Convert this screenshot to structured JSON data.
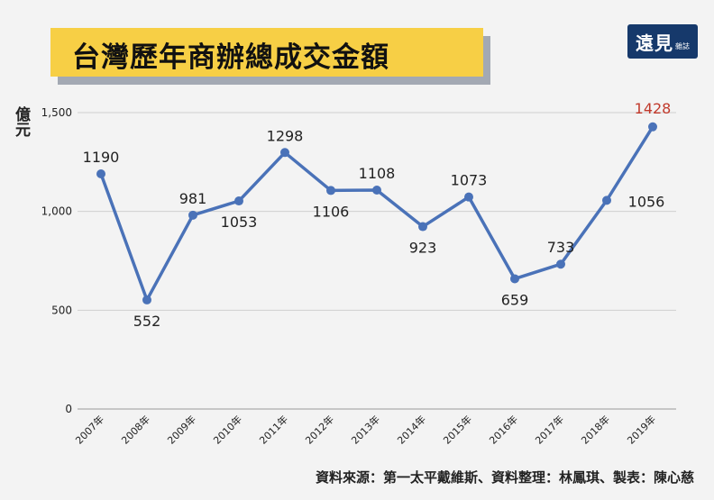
{
  "title": "台灣歷年商辦總成交金額",
  "logo": {
    "main": "遠見",
    "sub": "雜誌"
  },
  "source": "資料來源：第一太平戴維斯、資料整理：林鳳琪、製表：陳心慈",
  "colors": {
    "line": "#4a72b8",
    "highlight": "#c0392b",
    "title_bg": "#f7cf45",
    "title_shadow": "#a3a9b3",
    "logo_bg": "#16396b"
  },
  "chart_data": {
    "type": "line",
    "title": "台灣歷年商辦總成交金額",
    "ylabel": "億元",
    "xlabel": "",
    "categories": [
      "2007年",
      "2008年",
      "2009年",
      "2010年",
      "2011年",
      "2012年",
      "2013年",
      "2014年",
      "2015年",
      "2016年",
      "2017年",
      "2018年",
      "2019年"
    ],
    "values": [
      1190,
      552,
      981,
      1053,
      1298,
      1106,
      1108,
      923,
      1073,
      659,
      733,
      1056,
      1428
    ],
    "data_labels": [
      "1190",
      "552",
      "981",
      "1053",
      "1298",
      "1106",
      "1108",
      "923",
      "1073",
      "659",
      "733",
      "1056",
      "1428"
    ],
    "ylim": [
      0,
      1500
    ],
    "yticks": [
      0,
      500,
      1000,
      1500
    ],
    "ytick_labels": [
      "0",
      "500",
      "1,000",
      "1,500"
    ],
    "grid": true,
    "highlight_last": true
  }
}
